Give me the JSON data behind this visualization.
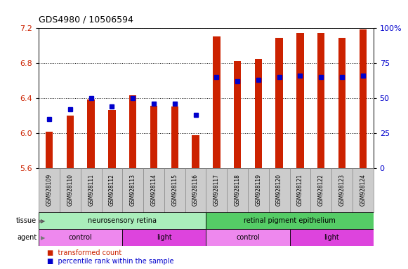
{
  "title": "GDS4980 / 10506594",
  "samples": [
    "GSM928109",
    "GSM928110",
    "GSM928111",
    "GSM928112",
    "GSM928113",
    "GSM928114",
    "GSM928115",
    "GSM928116",
    "GSM928117",
    "GSM928118",
    "GSM928119",
    "GSM928120",
    "GSM928121",
    "GSM928122",
    "GSM928123",
    "GSM928124"
  ],
  "bar_values": [
    6.01,
    6.2,
    6.38,
    6.26,
    6.43,
    6.31,
    6.3,
    5.97,
    7.1,
    6.82,
    6.85,
    7.09,
    7.14,
    7.14,
    7.09,
    7.18
  ],
  "percentile_values": [
    35,
    42,
    50,
    44,
    50,
    46,
    46,
    38,
    65,
    62,
    63,
    65,
    66,
    65,
    65,
    66
  ],
  "ymin": 5.6,
  "ymax": 7.2,
  "y2min": 0,
  "y2max": 100,
  "yticks": [
    5.6,
    6.0,
    6.4,
    6.8,
    7.2
  ],
  "y2ticks": [
    0,
    25,
    50,
    75,
    100
  ],
  "bar_color": "#cc2200",
  "dot_color": "#0000cc",
  "plot_bg": "#ffffff",
  "tissue_groups": [
    {
      "label": "neurosensory retina",
      "start": 0,
      "end": 8,
      "color": "#aaeebb"
    },
    {
      "label": "retinal pigment epithelium",
      "start": 8,
      "end": 16,
      "color": "#55cc66"
    }
  ],
  "agent_groups": [
    {
      "label": "control",
      "start": 0,
      "end": 4,
      "color": "#ee88ee"
    },
    {
      "label": "light",
      "start": 4,
      "end": 8,
      "color": "#dd44dd"
    },
    {
      "label": "control",
      "start": 8,
      "end": 12,
      "color": "#ee88ee"
    },
    {
      "label": "light",
      "start": 12,
      "end": 16,
      "color": "#dd44dd"
    }
  ],
  "sample_bg": "#cccccc",
  "sample_border": "#888888"
}
